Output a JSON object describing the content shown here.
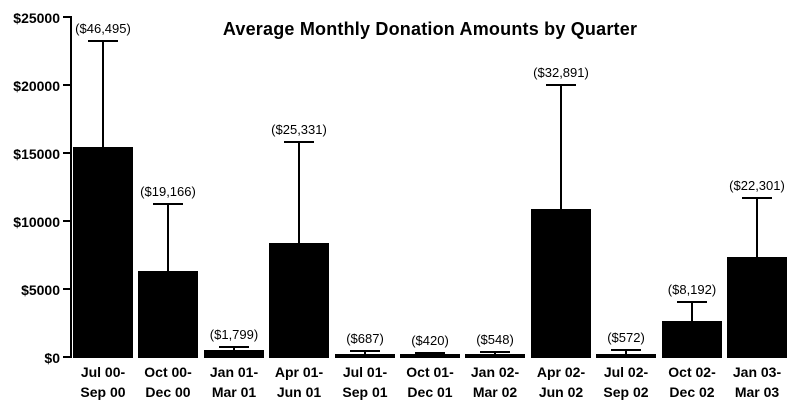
{
  "chart_data": {
    "type": "bar",
    "title": "Average Monthly Donation Amounts by Quarter",
    "xlabel": "",
    "ylabel": "",
    "ylim": [
      0,
      25000
    ],
    "grid": false,
    "legend_position": "none",
    "bar_color": "#000000",
    "background_color": "#ffffff",
    "categories": [
      "Jul 00-\nSep 00",
      "Oct 00-\nDec 00",
      "Jan 01-\nMar 01",
      "Apr 01-\nJun 01",
      "Jul 01-\nSep 01",
      "Oct 01-\nDec 01",
      "Jan 02-\nMar 02",
      "Apr 02-\nJun 02",
      "Jul 02-\nSep 02",
      "Oct 02-\nDec 02",
      "Jan 03-\nMar 03"
    ],
    "values": [
      15498,
      6389,
      600,
      8444,
      229,
      140,
      183,
      10964,
      191,
      2731,
      7434
    ],
    "bar_labels": [
      "($46,495)",
      "($19,166)",
      "($1,799)",
      "($25,331)",
      "($687)",
      "($420)",
      "($548)",
      "($32,891)",
      "($572)",
      "($8,192)",
      "($22,301)"
    ],
    "error_whisker_tops": [
      23300,
      11350,
      810,
      15900,
      480,
      400,
      440,
      20100,
      560,
      4100,
      11800
    ],
    "yticks": [
      {
        "value": 0,
        "label": "$0"
      },
      {
        "value": 5000,
        "label": "$5000"
      },
      {
        "value": 10000,
        "label": "$10000"
      },
      {
        "value": 15000,
        "label": "$15000"
      },
      {
        "value": 20000,
        "label": "$20000"
      },
      {
        "value": 25000,
        "label": "$25000"
      }
    ]
  }
}
